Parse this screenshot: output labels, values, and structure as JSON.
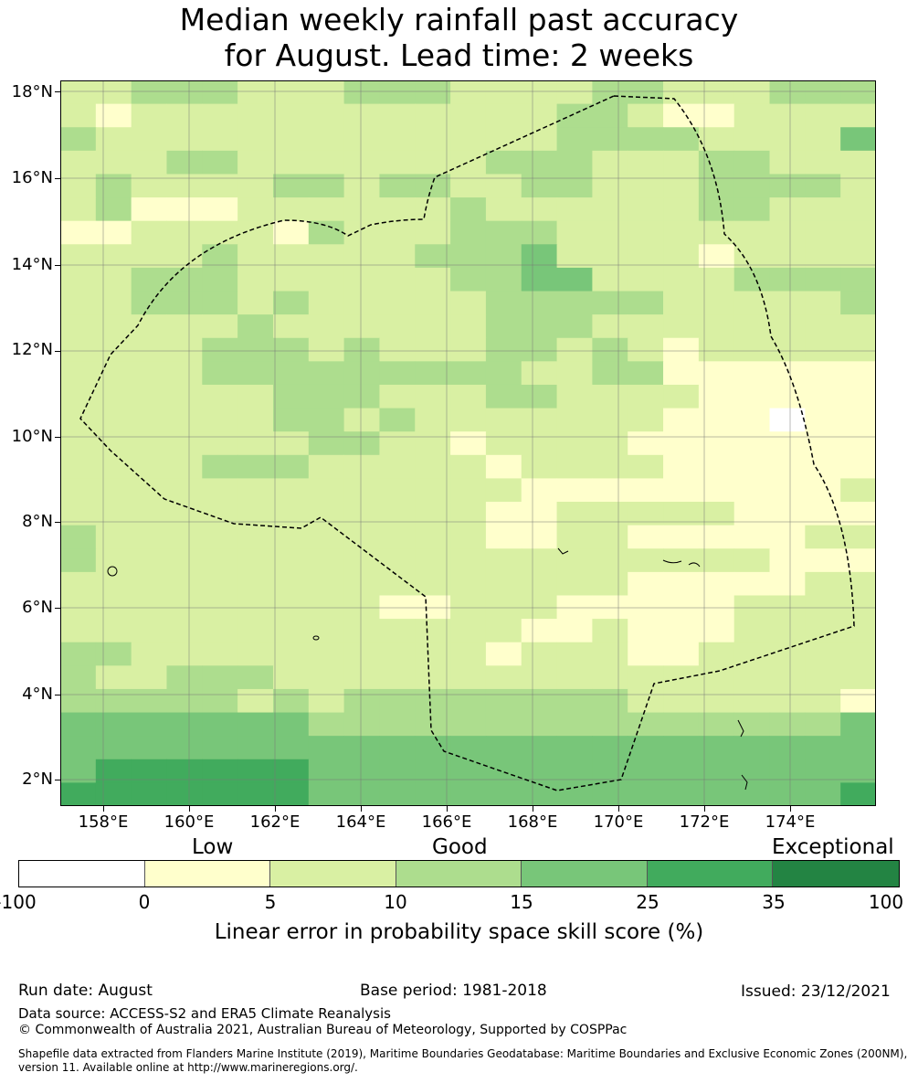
{
  "title": {
    "line1": "Median weekly rainfall past accuracy",
    "line2": "for August. Lead time: 2 weeks"
  },
  "map": {
    "lat_labels": [
      "18°N",
      "16°N",
      "14°N",
      "12°N",
      "10°N",
      "8°N",
      "6°N",
      "4°N",
      "2°N"
    ],
    "lon_labels": [
      "158°E",
      "160°E",
      "162°E",
      "164°E",
      "166°E",
      "168°E",
      "170°E",
      "172°E",
      "174°E"
    ],
    "boundary": "dashed EEZ boundary",
    "grid": true
  },
  "legend": {
    "categories": [
      "Low",
      "Good",
      "Exceptional"
    ],
    "ticks": [
      "-100",
      "0",
      "5",
      "10",
      "15",
      "25",
      "35",
      "100"
    ],
    "colors": [
      "#ffffff",
      "#ffffcc",
      "#d9f0a3",
      "#addd8e",
      "#78c679",
      "#41ab5d",
      "#238443"
    ],
    "label": "Linear error in probability space skill score (%)"
  },
  "footer": {
    "run_date": "Run date: August",
    "base_period": "Base period: 1981-2018",
    "issued": "Issued: 23/12/2021",
    "data_source": "Data source: ACCESS-S2 and ERA5 Climate Reanalysis",
    "copyright": "© Commonwealth of Australia 2021, Australian Bureau of Meteorology, Supported by COSPPac",
    "shapefile": "Shapefile data extracted from Flanders Marine Institute (2019), Maritime Boundaries Geodatabase: Maritime Boundaries and Exclusive Economic Zones (200NM), version 11. Available online at http://www.marineregions.org/."
  }
}
